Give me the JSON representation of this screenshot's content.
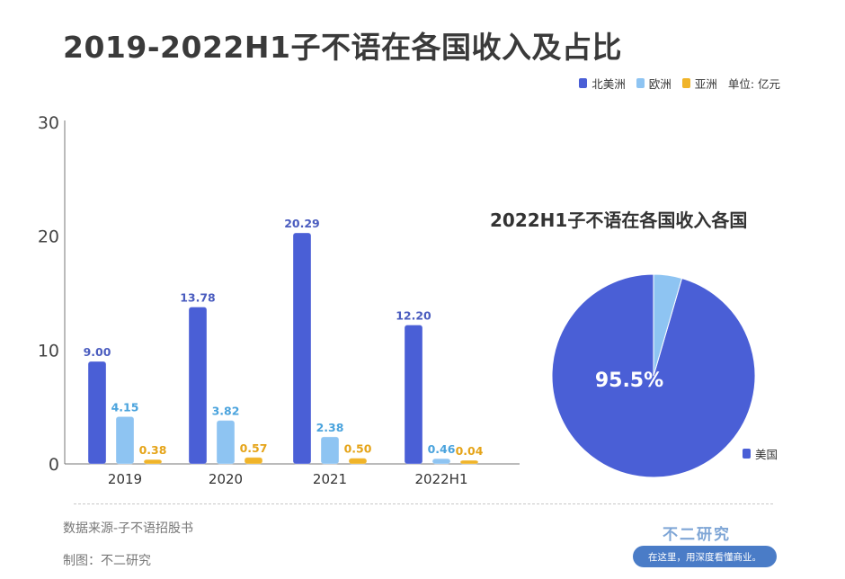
{
  "title": "2019-2022H1子不语在各国收入及占比",
  "legend": {
    "items": [
      {
        "label": "北美洲",
        "color": "#4a5fd6"
      },
      {
        "label": "欧洲",
        "color": "#8ec4f2"
      },
      {
        "label": "亚洲",
        "color": "#f0b429"
      }
    ],
    "unit": "单位: 亿元"
  },
  "chart_data": [
    {
      "type": "bar",
      "categories": [
        "2019",
        "2020",
        "2021",
        "2022H1"
      ],
      "series": [
        {
          "name": "北美洲",
          "values": [
            9.0,
            13.78,
            20.29,
            12.2
          ],
          "labels": [
            "9.00",
            "13.78",
            "20.29",
            "12.20"
          ],
          "color": "#4a5fd6",
          "label_color": "#4a5cbf"
        },
        {
          "name": "欧洲",
          "values": [
            4.15,
            3.82,
            2.38,
            0.46
          ],
          "labels": [
            "4.15",
            "3.82",
            "2.38",
            "0.46"
          ],
          "color": "#8ec4f2",
          "label_color": "#4aa3dd"
        },
        {
          "name": "亚洲",
          "values": [
            0.38,
            0.57,
            0.5,
            0.04
          ],
          "labels": [
            "0.38",
            "0.57",
            "0.50",
            "0.04"
          ],
          "color": "#f0b429",
          "label_color": "#e5a419"
        }
      ],
      "ylim": [
        0,
        30
      ],
      "yticks": [
        "0",
        "10",
        "20",
        "30"
      ],
      "legend_position": "top-right"
    },
    {
      "type": "pie",
      "title": "2022H1子不语在各国收入各国",
      "slices": [
        {
          "name": "美国",
          "value": 95.5,
          "label": "95.5%",
          "color": "#4a5fd6"
        },
        {
          "name": "",
          "value": 4.5,
          "label": "",
          "color": "#8ec4f2"
        }
      ],
      "legend_position": "bottom-right"
    }
  ],
  "footer": {
    "source": "数据来源-子不语招股书",
    "maker": "制图：不二研究",
    "brand": "不二研究",
    "brand_tagline": "在这里，用深度看懂商业。"
  }
}
